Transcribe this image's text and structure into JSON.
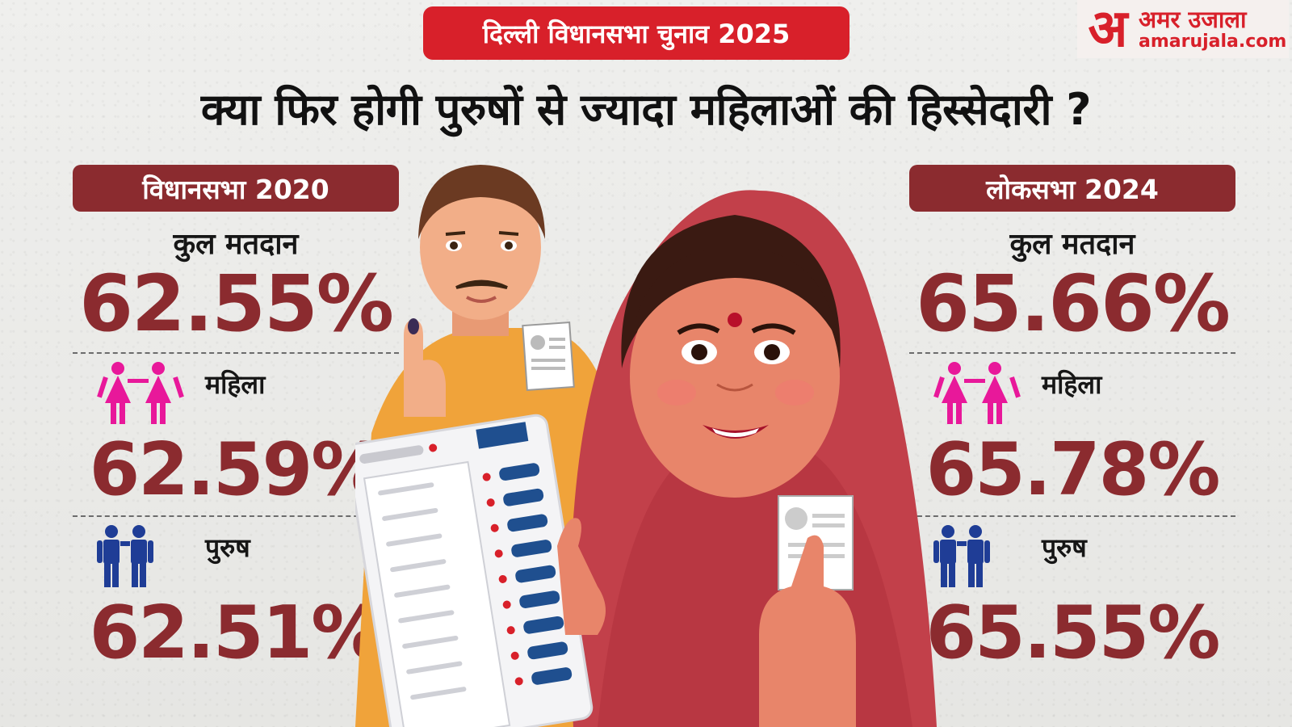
{
  "badge": "दिल्ली विधानसभा चुनाव 2025",
  "logo": {
    "mark": "अ",
    "name": "अमर उजाला",
    "url": "amarujala.com"
  },
  "headline": "क्या फिर होगी पुरुषों से ज्यादा महिलाओं की हिस्सेदारी ?",
  "colors": {
    "accent": "#d8202a",
    "panel": "#8b2b2f",
    "female": "#e8189a",
    "male": "#1f3d96"
  },
  "panels": {
    "left": {
      "title": "विधानसभा 2020",
      "total_label": "कुल मतदान",
      "total": "62.55%",
      "female_label": "महिला",
      "female": "62.59%",
      "male_label": "पुरुष",
      "male": "62.51%"
    },
    "right": {
      "title": "लोकसभा 2024",
      "total_label": "कुल मतदान",
      "total": "65.66%",
      "female_label": "महिला",
      "female": "65.78%",
      "male_label": "पुरुष",
      "male": "65.55%"
    }
  },
  "icons": [
    "female-pair-icon",
    "male-pair-icon",
    "voting-machine-icon",
    "ballot-slip-icon"
  ]
}
